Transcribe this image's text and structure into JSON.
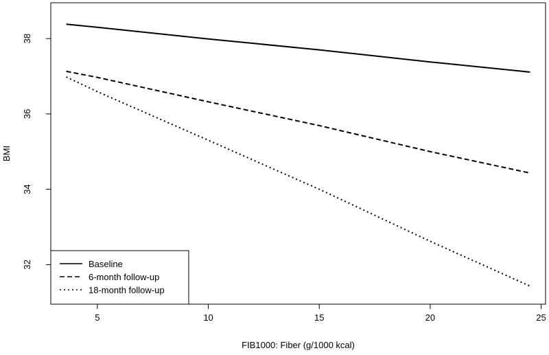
{
  "chart_data": {
    "type": "line",
    "xlabel": "FIB1000: Fiber (g/1000 kcal)",
    "ylabel": "BMI",
    "xlim": [
      2.9,
      25.2
    ],
    "ylim": [
      30.95,
      38.95
    ],
    "xticks": [
      5,
      10,
      15,
      20,
      25
    ],
    "yticks": [
      32,
      34,
      36,
      38
    ],
    "legend_position": "bottom-left",
    "series": [
      {
        "name": "Baseline",
        "linestyle": "solid",
        "color": "#000000",
        "x": [
          3.6,
          5,
          10,
          15,
          20,
          24.5
        ],
        "y": [
          38.38,
          38.3,
          37.99,
          37.7,
          37.38,
          37.11
        ]
      },
      {
        "name": "6-month follow-up",
        "linestyle": "dashed",
        "color": "#000000",
        "x": [
          3.6,
          5,
          10,
          15,
          20,
          24.5
        ],
        "y": [
          37.13,
          36.97,
          36.32,
          35.69,
          35.0,
          34.43
        ]
      },
      {
        "name": "18-month follow-up",
        "linestyle": "dotted",
        "color": "#000000",
        "x": [
          3.6,
          5,
          10,
          15,
          20,
          24.5
        ],
        "y": [
          36.98,
          36.59,
          35.3,
          34.0,
          32.62,
          31.43
        ]
      }
    ]
  }
}
